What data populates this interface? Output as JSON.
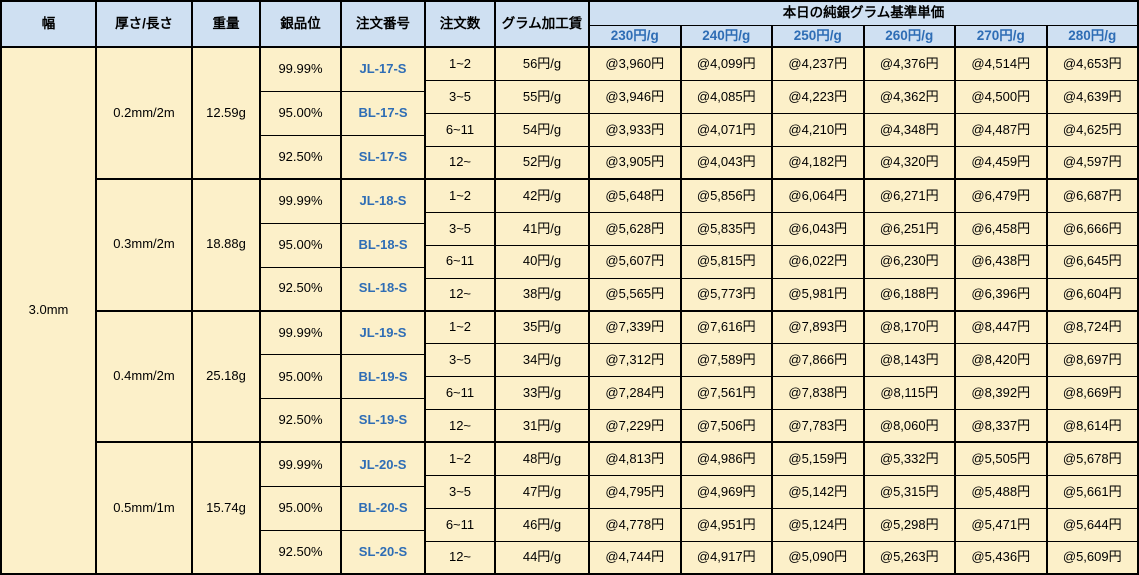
{
  "table": {
    "headers": {
      "width": "幅",
      "thickness_length": "厚さ/長さ",
      "weight": "重量",
      "purity": "銀品位",
      "order_no": "注文番号",
      "order_qty": "注文数",
      "gram_fee": "グラム加工賃",
      "base_price_title": "本日の純銀グラム基準単価",
      "price_columns": [
        "230円/g",
        "240円/g",
        "250円/g",
        "260円/g",
        "270円/g",
        "280円/g"
      ]
    },
    "width_value": "3.0mm",
    "groups": [
      {
        "thickness_length": "0.2mm/2m",
        "weight": "12.59g",
        "purities": [
          {
            "purity": "99.99%",
            "order_no": "JL-17-S"
          },
          {
            "purity": "95.00%",
            "order_no": "BL-17-S"
          },
          {
            "purity": "92.50%",
            "order_no": "SL-17-S"
          }
        ],
        "rows": [
          {
            "qty": "1~2",
            "fee": "56円/g",
            "prices": [
              "@3,960円",
              "@4,099円",
              "@4,237円",
              "@4,376円",
              "@4,514円",
              "@4,653円"
            ]
          },
          {
            "qty": "3~5",
            "fee": "55円/g",
            "prices": [
              "@3,946円",
              "@4,085円",
              "@4,223円",
              "@4,362円",
              "@4,500円",
              "@4,639円"
            ]
          },
          {
            "qty": "6~11",
            "fee": "54円/g",
            "prices": [
              "@3,933円",
              "@4,071円",
              "@4,210円",
              "@4,348円",
              "@4,487円",
              "@4,625円"
            ]
          },
          {
            "qty": "12~",
            "fee": "52円/g",
            "prices": [
              "@3,905円",
              "@4,043円",
              "@4,182円",
              "@4,320円",
              "@4,459円",
              "@4,597円"
            ]
          }
        ]
      },
      {
        "thickness_length": "0.3mm/2m",
        "weight": "18.88g",
        "purities": [
          {
            "purity": "99.99%",
            "order_no": "JL-18-S"
          },
          {
            "purity": "95.00%",
            "order_no": "BL-18-S"
          },
          {
            "purity": "92.50%",
            "order_no": "SL-18-S"
          }
        ],
        "rows": [
          {
            "qty": "1~2",
            "fee": "42円/g",
            "prices": [
              "@5,648円",
              "@5,856円",
              "@6,064円",
              "@6,271円",
              "@6,479円",
              "@6,687円"
            ]
          },
          {
            "qty": "3~5",
            "fee": "41円/g",
            "prices": [
              "@5,628円",
              "@5,835円",
              "@6,043円",
              "@6,251円",
              "@6,458円",
              "@6,666円"
            ]
          },
          {
            "qty": "6~11",
            "fee": "40円/g",
            "prices": [
              "@5,607円",
              "@5,815円",
              "@6,022円",
              "@6,230円",
              "@6,438円",
              "@6,645円"
            ]
          },
          {
            "qty": "12~",
            "fee": "38円/g",
            "prices": [
              "@5,565円",
              "@5,773円",
              "@5,981円",
              "@6,188円",
              "@6,396円",
              "@6,604円"
            ]
          }
        ]
      },
      {
        "thickness_length": "0.4mm/2m",
        "weight": "25.18g",
        "purities": [
          {
            "purity": "99.99%",
            "order_no": "JL-19-S"
          },
          {
            "purity": "95.00%",
            "order_no": "BL-19-S"
          },
          {
            "purity": "92.50%",
            "order_no": "SL-19-S"
          }
        ],
        "rows": [
          {
            "qty": "1~2",
            "fee": "35円/g",
            "prices": [
              "@7,339円",
              "@7,616円",
              "@7,893円",
              "@8,170円",
              "@8,447円",
              "@8,724円"
            ]
          },
          {
            "qty": "3~5",
            "fee": "34円/g",
            "prices": [
              "@7,312円",
              "@7,589円",
              "@7,866円",
              "@8,143円",
              "@8,420円",
              "@8,697円"
            ]
          },
          {
            "qty": "6~11",
            "fee": "33円/g",
            "prices": [
              "@7,284円",
              "@7,561円",
              "@7,838円",
              "@8,115円",
              "@8,392円",
              "@8,669円"
            ]
          },
          {
            "qty": "12~",
            "fee": "31円/g",
            "prices": [
              "@7,229円",
              "@7,506円",
              "@7,783円",
              "@8,060円",
              "@8,337円",
              "@8,614円"
            ]
          }
        ]
      },
      {
        "thickness_length": "0.5mm/1m",
        "weight": "15.74g",
        "purities": [
          {
            "purity": "99.99%",
            "order_no": "JL-20-S"
          },
          {
            "purity": "95.00%",
            "order_no": "BL-20-S"
          },
          {
            "purity": "92.50%",
            "order_no": "SL-20-S"
          }
        ],
        "rows": [
          {
            "qty": "1~2",
            "fee": "48円/g",
            "prices": [
              "@4,813円",
              "@4,986円",
              "@5,159円",
              "@5,332円",
              "@5,505円",
              "@5,678円"
            ]
          },
          {
            "qty": "3~5",
            "fee": "47円/g",
            "prices": [
              "@4,795円",
              "@4,969円",
              "@5,142円",
              "@5,315円",
              "@5,488円",
              "@5,661円"
            ]
          },
          {
            "qty": "6~11",
            "fee": "46円/g",
            "prices": [
              "@4,778円",
              "@4,951円",
              "@5,124円",
              "@5,298円",
              "@5,471円",
              "@5,644円"
            ]
          },
          {
            "qty": "12~",
            "fee": "44円/g",
            "prices": [
              "@4,744円",
              "@4,917円",
              "@5,090円",
              "@5,263円",
              "@5,436円",
              "@5,609円"
            ]
          }
        ]
      }
    ]
  },
  "colors": {
    "header_bg": "#cfe0f2",
    "body_bg": "#fcf0c9",
    "accent_blue": "#2e6db5",
    "border": "#000000"
  }
}
